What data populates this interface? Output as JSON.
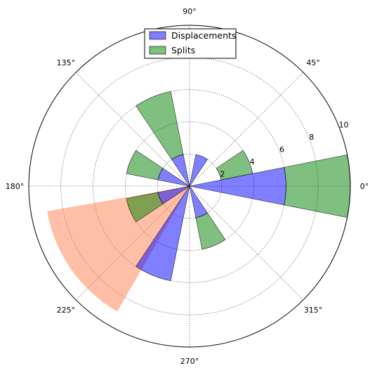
{
  "chart_data": {
    "type": "polar-bar",
    "angle_ticks_deg": [
      0,
      45,
      90,
      135,
      180,
      225,
      270,
      315
    ],
    "angle_tick_labels": [
      "0°",
      "45°",
      "90°",
      "135°",
      "180°",
      "225°",
      "270°",
      "315°"
    ],
    "radial_ticks": [
      2,
      4,
      6,
      8,
      10
    ],
    "radial_tick_labels": [
      "2",
      "4",
      "6",
      "8",
      "10"
    ],
    "rlim": [
      0,
      10
    ],
    "grid": true,
    "legend_position": "top-center",
    "series": [
      {
        "name": "Displacements",
        "color": "#0000ff",
        "alpha": 0.5,
        "angle_width_deg": 22.5,
        "bars": [
          {
            "theta_deg": 0,
            "value": 6.0
          },
          {
            "theta_deg": 67.5,
            "value": 2.0
          },
          {
            "theta_deg": 112.5,
            "value": 2.0
          },
          {
            "theta_deg": 157.5,
            "value": 2.0
          },
          {
            "theta_deg": 202.5,
            "value": 2.0
          },
          {
            "theta_deg": 247.5,
            "value": 6.0
          },
          {
            "theta_deg": 292.5,
            "value": 2.0
          }
        ]
      },
      {
        "name": "Splits",
        "color": "#008000",
        "alpha": 0.5,
        "angle_width_deg": 22.5,
        "bars": [
          {
            "theta_deg": 0,
            "base": 6.0,
            "value": 4.0
          },
          {
            "theta_deg": 22.5,
            "base": 2.0,
            "value": 2.0
          },
          {
            "theta_deg": 112.5,
            "base": 2.0,
            "value": 4.0
          },
          {
            "theta_deg": 157.5,
            "base": 2.0,
            "value": 2.0
          },
          {
            "theta_deg": 202.5,
            "base": 2.0,
            "value": 2.0
          },
          {
            "theta_deg": 292.5,
            "base": 2.0,
            "value": 2.0
          }
        ]
      }
    ],
    "highlight_wedge": {
      "color": "#ff7f50",
      "alpha": 0.5,
      "theta_start_deg": 190,
      "theta_end_deg": 240,
      "radius": 9
    },
    "legend": [
      {
        "label": "Displacements",
        "color": "#0000ff"
      },
      {
        "label": "Splits",
        "color": "#008000"
      }
    ]
  }
}
